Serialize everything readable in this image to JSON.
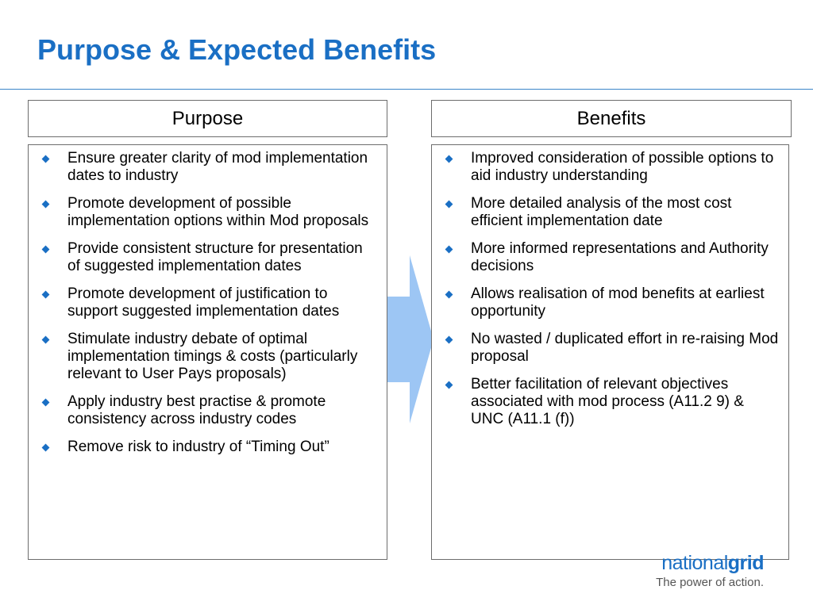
{
  "slide": {
    "title": "Purpose & Expected Benefits",
    "accent_color": "#1a6fc4"
  },
  "purpose": {
    "header": "Purpose",
    "items": [
      "Ensure greater clarity of mod implementation dates to industry",
      "Promote development of possible implementation options within Mod proposals",
      "Provide consistent structure for presentation of suggested implementation dates",
      "Promote development of justification to support suggested implementation dates",
      "Stimulate industry debate of optimal implementation timings & costs (particularly relevant to User Pays proposals)",
      "Apply industry best practise & promote consistency across industry codes",
      "Remove risk to industry of “Timing Out”"
    ]
  },
  "benefits": {
    "header": "Benefits",
    "items": [
      "Improved consideration of possible options to aid industry understanding",
      "More detailed analysis of the most cost efficient implementation date",
      "More informed representations and Authority decisions",
      "Allows realisation of mod benefits at earliest opportunity",
      "No wasted / duplicated effort in re-raising Mod proposal",
      "Better facilitation of relevant objectives associated with mod process (A11.2 9) & UNC (A11.1 (f))"
    ]
  },
  "arrow": {
    "icon": "right-arrow-icon",
    "color": "#9dc6f4"
  },
  "logo": {
    "word_regular": "national",
    "word_bold": "grid",
    "tagline": "The power of action."
  }
}
